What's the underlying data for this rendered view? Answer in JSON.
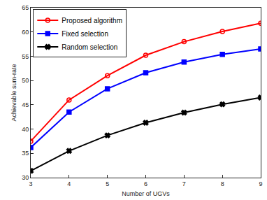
{
  "chart_data": {
    "type": "line",
    "x_label": "Number of UGVs",
    "y_label": "Achievable sum-rate",
    "x": [
      3,
      4,
      5,
      6,
      7,
      8,
      9
    ],
    "series": [
      {
        "name": "Proposed algorithm",
        "color": "#ff0000",
        "marker": "circle-open",
        "values": [
          37.5,
          46.0,
          51.0,
          55.2,
          58.0,
          60.1,
          61.8
        ]
      },
      {
        "name": "Fixed selection",
        "color": "#0000ff",
        "marker": "square",
        "values": [
          36.2,
          43.5,
          48.3,
          51.6,
          53.8,
          55.4,
          56.5
        ]
      },
      {
        "name": "Random selection",
        "color": "#000000",
        "marker": "x",
        "values": [
          31.4,
          35.5,
          38.7,
          41.3,
          43.4,
          45.1,
          46.5
        ]
      }
    ],
    "xlim": [
      3,
      9
    ],
    "xticks": [
      3,
      4,
      5,
      6,
      7,
      8,
      9
    ],
    "ylim": [
      30,
      65
    ],
    "yticks": [
      30,
      35,
      40,
      45,
      50,
      55,
      60,
      65
    ],
    "grid": false,
    "legend": "upper left"
  }
}
